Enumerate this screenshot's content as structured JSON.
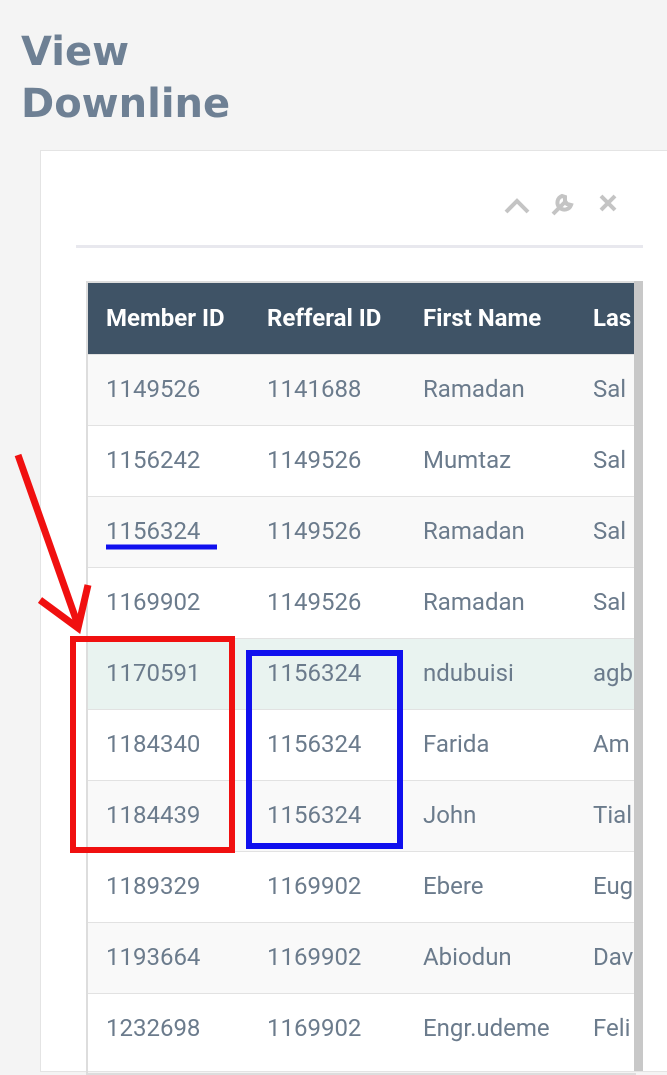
{
  "header": {
    "title_line1": "View",
    "title_line2": "Downline"
  },
  "table": {
    "columns": [
      "Member ID",
      "Refferal ID",
      "First Name",
      "Las"
    ],
    "rows": [
      [
        "1149526",
        "1141688",
        "Ramadan",
        "Sal"
      ],
      [
        "1156242",
        "1149526",
        "Mumtaz",
        "Sal"
      ],
      [
        "1156324",
        "1149526",
        "Ramadan",
        "Sal"
      ],
      [
        "1169902",
        "1149526",
        "Ramadan",
        "Sal"
      ],
      [
        "1170591",
        "1156324",
        "ndubuisi",
        "agb"
      ],
      [
        "1184340",
        "1156324",
        "Farida",
        "Am"
      ],
      [
        "1184439",
        "1156324",
        "John",
        "Tial"
      ],
      [
        "1189329",
        "1169902",
        "Ebere",
        "Eug"
      ],
      [
        "1193664",
        "1169902",
        "Abiodun",
        "Dav"
      ],
      [
        "1232698",
        "1169902",
        "Engr.udeme",
        "Feli"
      ]
    ]
  }
}
